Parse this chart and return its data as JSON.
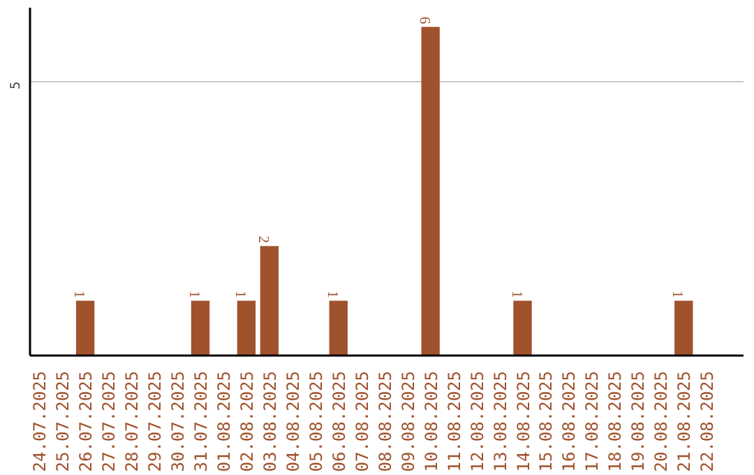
{
  "chart_data": {
    "type": "bar",
    "categories": [
      "24.07.2025",
      "25.07.2025",
      "26.07.2025",
      "27.07.2025",
      "28.07.2025",
      "29.07.2025",
      "30.07.2025",
      "31.07.2025",
      "01.08.2025",
      "02.08.2025",
      "03.08.2025",
      "04.08.2025",
      "05.08.2025",
      "06.08.2025",
      "07.08.2025",
      "08.08.2025",
      "09.08.2025",
      "10.08.2025",
      "11.08.2025",
      "12.08.2025",
      "13.08.2025",
      "14.08.2025",
      "15.08.2025",
      "16.08.2025",
      "17.08.2025",
      "18.08.2025",
      "19.08.2025",
      "20.08.2025",
      "21.08.2025",
      "22.08.2025"
    ],
    "values": [
      0,
      0,
      1,
      0,
      0,
      0,
      0,
      1,
      0,
      1,
      2,
      0,
      0,
      1,
      0,
      0,
      0,
      6,
      0,
      0,
      0,
      1,
      0,
      0,
      0,
      0,
      0,
      0,
      1,
      0
    ],
    "value_labels": [
      null,
      null,
      "1",
      null,
      null,
      null,
      null,
      "1",
      null,
      "1",
      "2",
      null,
      null,
      "1",
      null,
      null,
      null,
      "6",
      null,
      null,
      null,
      "1",
      null,
      null,
      null,
      null,
      null,
      null,
      "1",
      null
    ],
    "color": "#a0522d",
    "ylim": [
      0,
      6.35
    ],
    "yticks": [
      5
    ],
    "grid": "y"
  }
}
